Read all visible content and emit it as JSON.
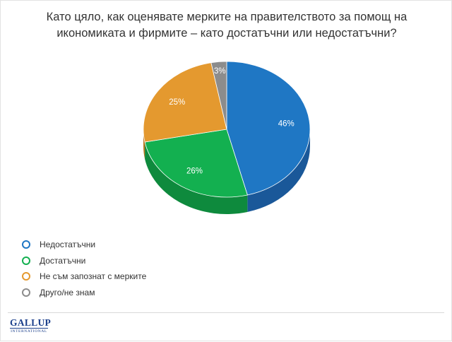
{
  "title": "Като цяло, как оценявате мерките на правителството за помощ на икономиката и фирмите – като достатъчни или недостатъчни?",
  "chart_data": {
    "type": "pie",
    "title": "Като цяло, как оценявате мерките на правителството за помощ на икономиката и фирмите – като достатъчни или недостатъчни?",
    "style": "3d",
    "legend_position": "bottom-left",
    "slices": [
      {
        "label": "Недостатъчни",
        "value": 46,
        "display": "46%",
        "color": "#1f77c4",
        "side_color": "#1a5899"
      },
      {
        "label": "Достатъчни",
        "value": 26,
        "display": "26%",
        "color": "#13b050",
        "side_color": "#0e8a3d"
      },
      {
        "label": "Не съм запознат с мерките",
        "value": 25,
        "display": "25%",
        "color": "#e4992f",
        "side_color": "#b8771f"
      },
      {
        "label": "Друго/не знам",
        "value": 3,
        "display": "3%",
        "color": "#8c8c8c",
        "side_color": "#6b6b6b"
      }
    ]
  },
  "legend": [
    {
      "label": "Недостатъчни",
      "color": "#1f77c4"
    },
    {
      "label": "Достатъчни",
      "color": "#13b050"
    },
    {
      "label": "Не съм запознат с мерките",
      "color": "#e4992f"
    },
    {
      "label": "Друго/не знам",
      "color": "#8c8c8c"
    }
  ],
  "logo": {
    "main": "GALLUP",
    "sub": "INTERNATIONAL"
  }
}
